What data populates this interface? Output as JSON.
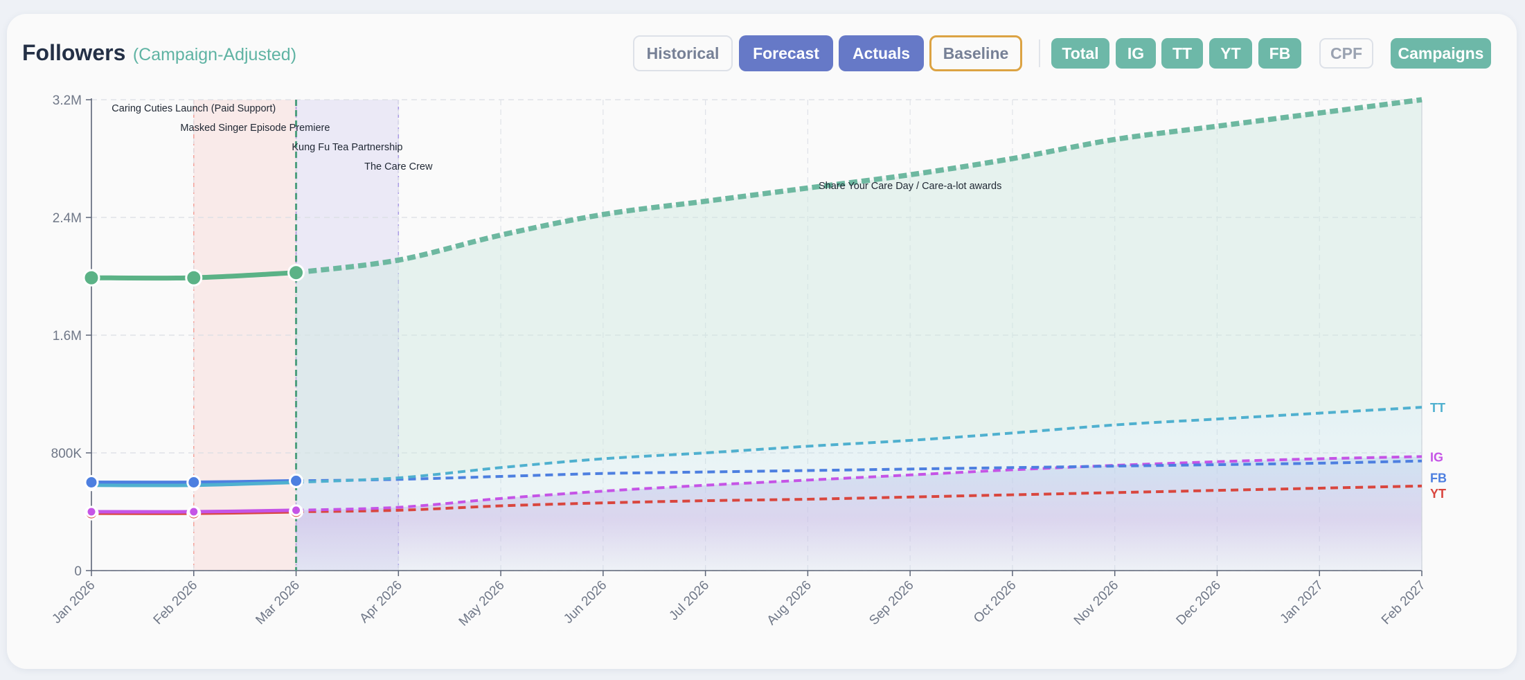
{
  "header": {
    "title": "Followers",
    "subtitle": "(Campaign-Adjusted)"
  },
  "toolbar": {
    "historical": "Historical",
    "forecast": "Forecast",
    "actuals": "Actuals",
    "baseline": "Baseline",
    "total": "Total",
    "ig": "IG",
    "tt": "TT",
    "yt": "YT",
    "fb": "FB",
    "cpf": "CPF",
    "campaigns": "Campaigns"
  },
  "colors": {
    "total": "#5bb286",
    "total_forecast": "#6db8a0",
    "tt": "#4fb0cf",
    "ig": "#c554e6",
    "fb": "#4d7fe0",
    "yt": "#d9463e",
    "actuals_accent": "#6679c7",
    "baseline_accent": "#dca343"
  },
  "chart_data": {
    "type": "line",
    "x": [
      "Jan 2026",
      "Feb 2026",
      "Mar 2026",
      "Apr 2026",
      "May 2026",
      "Jun 2026",
      "Jul 2026",
      "Aug 2026",
      "Sep 2026",
      "Oct 2026",
      "Nov 2026",
      "Dec 2026",
      "Jan 2027",
      "Feb 2027"
    ],
    "ylim": [
      0,
      3200000
    ],
    "yticks": [
      0,
      800000,
      1600000,
      2400000,
      3200000
    ],
    "ytick_labels": [
      "0",
      "800K",
      "1.6M",
      "2.4M",
      "3.2M"
    ],
    "grid": true,
    "actual_through_index": 2,
    "series": [
      {
        "name": "Total",
        "key": "total",
        "end_label": "",
        "values": [
          1990000,
          1990000,
          2025000,
          2110000,
          2280000,
          2420000,
          2510000,
          2600000,
          2690000,
          2800000,
          2930000,
          3020000,
          3110000,
          3200000
        ]
      },
      {
        "name": "TT",
        "key": "tt",
        "end_label": "TT",
        "values": [
          580000,
          580000,
          600000,
          630000,
          700000,
          760000,
          800000,
          845000,
          885000,
          935000,
          990000,
          1030000,
          1070000,
          1110000
        ]
      },
      {
        "name": "IG",
        "key": "ig",
        "end_label": "IG",
        "values": [
          400000,
          400000,
          410000,
          430000,
          490000,
          540000,
          580000,
          615000,
          650000,
          685000,
          715000,
          740000,
          760000,
          775000
        ]
      },
      {
        "name": "FB",
        "key": "fb",
        "end_label": "FB",
        "values": [
          600000,
          600000,
          610000,
          620000,
          640000,
          660000,
          670000,
          680000,
          690000,
          700000,
          710000,
          720000,
          730000,
          745000
        ]
      },
      {
        "name": "YT",
        "key": "yt",
        "end_label": "YT",
        "values": [
          390000,
          390000,
          400000,
          410000,
          440000,
          460000,
          475000,
          485000,
          500000,
          515000,
          530000,
          545000,
          560000,
          575000
        ]
      }
    ],
    "campaign_bands": [
      {
        "start_index": 1,
        "end_index": 2,
        "color": "#f4a29a"
      },
      {
        "start_index": 2,
        "end_index": 3,
        "color": "#a99ae6"
      }
    ],
    "today_marker_index": 2,
    "annotations": [
      {
        "text": "Caring Cuties Launch (Paid Support)",
        "at_index": 1
      },
      {
        "text": "Masked Singer Episode Premiere",
        "at_index": 1.6
      },
      {
        "text": "Kung Fu Tea Partnership",
        "at_index": 2.5
      },
      {
        "text": "The Care Crew",
        "at_index": 3
      },
      {
        "text": "Share Your Care Day / Care-a-lot awards",
        "at_index": 8
      }
    ]
  }
}
